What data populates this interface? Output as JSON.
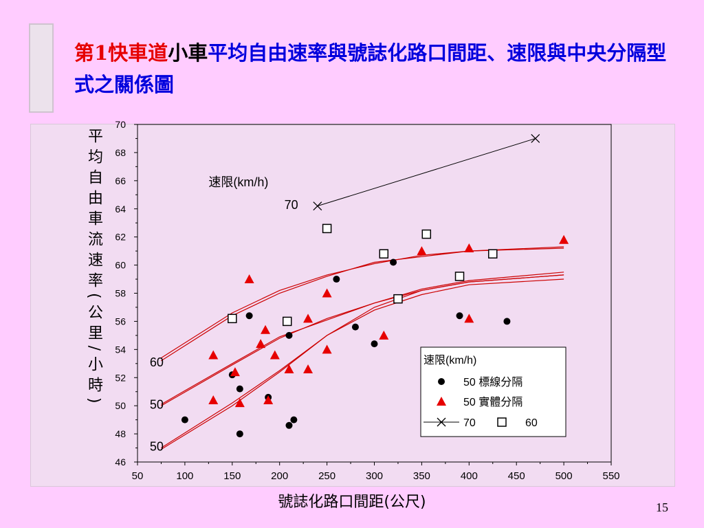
{
  "title": {
    "part_red": "第1快車道",
    "part_black": "小車",
    "part_blue": "平均自由速率與號誌化路口間距、速限與中央分隔型式之關係圖"
  },
  "page_number": "15",
  "colors": {
    "background": "#ffccff",
    "panel": "#f2dcf2",
    "red": "#e60000",
    "blue": "#0000dd",
    "curve": "#cc0000"
  },
  "chart_data": {
    "type": "scatter",
    "xlabel": "號誌化路口間距(公尺)",
    "ylabel": "平均自由車流速率(公里/小時)",
    "xlim": [
      50,
      550
    ],
    "ylim": [
      46,
      70
    ],
    "x_ticks": [
      "50",
      "100",
      "150",
      "200",
      "250",
      "300",
      "350",
      "400",
      "450",
      "500",
      "550"
    ],
    "y_ticks": [
      "46",
      "48",
      "50",
      "52",
      "54",
      "56",
      "58",
      "60",
      "62",
      "64",
      "66",
      "68",
      "70"
    ],
    "legend": {
      "title": "速限(km/h)",
      "entries": [
        {
          "label": "50 標線分隔",
          "marker": "circle"
        },
        {
          "label": "50 實體分隔",
          "marker": "triangle"
        },
        {
          "label": "70",
          "marker": "line-x"
        },
        {
          "label": "60",
          "marker": "square"
        }
      ],
      "placement": "bottom-right"
    },
    "annotations": [
      {
        "text": "速限(km/h)",
        "x": 125,
        "y": 65.6
      },
      {
        "text": "70",
        "x": 205,
        "y": 64
      },
      {
        "text": "60",
        "x": 63,
        "y": 52.8
      },
      {
        "text": "50",
        "x": 63,
        "y": 49.8
      },
      {
        "text": "50",
        "x": 63,
        "y": 46.8
      }
    ],
    "series": [
      {
        "name": "50 標線分隔",
        "marker": "circle",
        "points": [
          [
            100,
            49
          ],
          [
            150,
            52.2
          ],
          [
            158,
            51.2
          ],
          [
            158,
            48
          ],
          [
            168,
            56.4
          ],
          [
            188,
            50.6
          ],
          [
            210,
            55
          ],
          [
            210,
            48.6
          ],
          [
            215,
            49
          ],
          [
            260,
            59
          ],
          [
            280,
            55.6
          ],
          [
            300,
            54.4
          ],
          [
            320,
            60.2
          ],
          [
            390,
            56.4
          ],
          [
            440,
            56
          ]
        ]
      },
      {
        "name": "50 實體分隔",
        "marker": "triangle",
        "points": [
          [
            130,
            53.6
          ],
          [
            130,
            50.4
          ],
          [
            153,
            52.4
          ],
          [
            158,
            50.2
          ],
          [
            168,
            59
          ],
          [
            180,
            54.4
          ],
          [
            185,
            55.4
          ],
          [
            188,
            50.4
          ],
          [
            195,
            53.6
          ],
          [
            210,
            52.6
          ],
          [
            230,
            56.2
          ],
          [
            230,
            52.6
          ],
          [
            250,
            58
          ],
          [
            250,
            54
          ],
          [
            310,
            55
          ],
          [
            350,
            61
          ],
          [
            400,
            61.2
          ],
          [
            400,
            56.2
          ],
          [
            500,
            61.8
          ]
        ]
      },
      {
        "name": "70",
        "marker": "x",
        "points": [
          [
            240,
            64.2
          ],
          [
            470,
            69
          ]
        ]
      },
      {
        "name": "60",
        "marker": "square",
        "points": [
          [
            150,
            56.2
          ],
          [
            208,
            56
          ],
          [
            250,
            62.6
          ],
          [
            310,
            60.8
          ],
          [
            325,
            57.6
          ],
          [
            355,
            62.2
          ],
          [
            390,
            59.2
          ],
          [
            425,
            60.8
          ]
        ]
      }
    ],
    "curves": [
      {
        "label": "60",
        "points": [
          [
            75,
            53.2
          ],
          [
            150,
            56.4
          ],
          [
            200,
            58
          ],
          [
            250,
            59.2
          ],
          [
            300,
            60.2
          ],
          [
            350,
            60.6
          ],
          [
            400,
            61
          ],
          [
            500,
            61.2
          ]
        ]
      },
      {
        "label": "60",
        "points": [
          [
            75,
            53.4
          ],
          [
            150,
            56.6
          ],
          [
            200,
            58.2
          ],
          [
            250,
            59.3
          ],
          [
            300,
            60.1
          ],
          [
            350,
            60.7
          ],
          [
            400,
            61
          ],
          [
            500,
            61.3
          ]
        ]
      },
      {
        "label": "50",
        "points": [
          [
            75,
            50
          ],
          [
            150,
            52.9
          ],
          [
            200,
            54.8
          ],
          [
            250,
            56.2
          ],
          [
            300,
            57.3
          ],
          [
            350,
            58.2
          ],
          [
            400,
            58.8
          ],
          [
            500,
            59.3
          ]
        ]
      },
      {
        "label": "50",
        "points": [
          [
            75,
            50.1
          ],
          [
            150,
            53
          ],
          [
            200,
            54.9
          ],
          [
            250,
            56.1
          ],
          [
            300,
            57.3
          ],
          [
            350,
            58.3
          ],
          [
            400,
            58.9
          ],
          [
            500,
            59.5
          ]
        ]
      },
      {
        "label": "50",
        "points": [
          [
            75,
            47
          ],
          [
            150,
            50.2
          ],
          [
            200,
            52.5
          ],
          [
            250,
            55
          ],
          [
            300,
            56.8
          ],
          [
            350,
            57.9
          ],
          [
            400,
            58.6
          ],
          [
            500,
            59
          ]
        ]
      },
      {
        "label": "50",
        "points": [
          [
            75,
            46.9
          ],
          [
            150,
            50
          ],
          [
            200,
            52.4
          ],
          [
            250,
            55
          ],
          [
            300,
            57
          ],
          [
            350,
            58.2
          ],
          [
            400,
            58.8
          ],
          [
            500,
            59.3
          ]
        ]
      }
    ]
  }
}
